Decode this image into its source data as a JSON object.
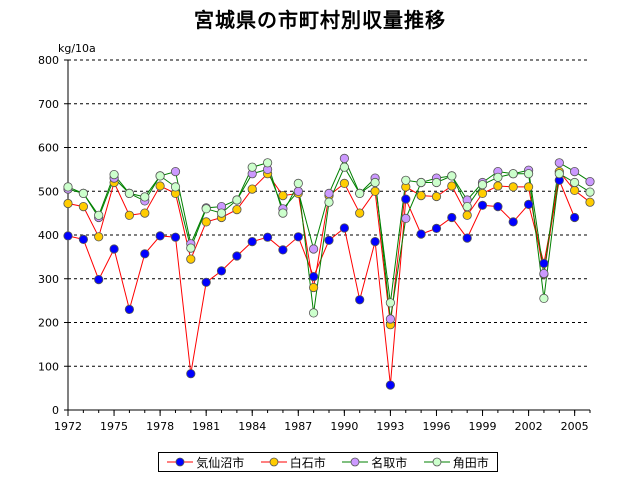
{
  "chart_data": {
    "type": "line",
    "title": "宮城県の市町村別収量推移",
    "unit_label": "kg/10a",
    "xlabel": "",
    "ylabel": "",
    "ylim": [
      0,
      800
    ],
    "y_ticks": [
      0,
      100,
      200,
      300,
      400,
      500,
      600,
      700,
      800
    ],
    "x_range": [
      1972,
      2006
    ],
    "x_ticks": [
      1972,
      1975,
      1978,
      1981,
      1984,
      1987,
      1990,
      1993,
      1996,
      1999,
      2002,
      2005
    ],
    "grid": true,
    "legend_position": "bottom",
    "x": [
      1972,
      1973,
      1974,
      1975,
      1976,
      1977,
      1978,
      1979,
      1980,
      1981,
      1982,
      1983,
      1984,
      1985,
      1986,
      1987,
      1988,
      1989,
      1990,
      1991,
      1992,
      1993,
      1994,
      1995,
      1996,
      1997,
      1998,
      1999,
      2000,
      2001,
      2002,
      2003,
      2004,
      2005,
      2006
    ],
    "series": [
      {
        "name": "気仙沼市",
        "line_color": "#ff0000",
        "marker_color": "#0000ff",
        "values": [
          398,
          390,
          298,
          368,
          230,
          357,
          398,
          395,
          83,
          292,
          318,
          352,
          385,
          395,
          366,
          396,
          305,
          388,
          416,
          252,
          385,
          57,
          482,
          402,
          415,
          440,
          393,
          468,
          465,
          430,
          470,
          335,
          525,
          440,
          null
        ]
      },
      {
        "name": "白石市",
        "line_color": "#ff0000",
        "marker_color": "#ffcc00",
        "values": [
          472,
          465,
          396,
          520,
          445,
          450,
          512,
          495,
          345,
          430,
          440,
          458,
          505,
          540,
          490,
          495,
          280,
          490,
          518,
          450,
          500,
          195,
          510,
          490,
          488,
          512,
          445,
          495,
          512,
          510,
          510,
          310,
          545,
          502,
          475
        ]
      },
      {
        "name": "名取市",
        "line_color": "#008000",
        "marker_color": "#cc99ff",
        "values": [
          505,
          495,
          440,
          530,
          495,
          478,
          535,
          545,
          380,
          462,
          465,
          480,
          540,
          550,
          460,
          500,
          368,
          495,
          575,
          495,
          530,
          208,
          438,
          520,
          530,
          535,
          480,
          520,
          545,
          540,
          548,
          312,
          565,
          545,
          522
        ]
      },
      {
        "name": "角田市",
        "line_color": "#008000",
        "marker_color": "#ccffcc",
        "values": [
          510,
          495,
          445,
          538,
          495,
          487,
          535,
          510,
          370,
          460,
          450,
          480,
          555,
          565,
          450,
          518,
          222,
          475,
          555,
          495,
          520,
          245,
          525,
          520,
          520,
          535,
          465,
          515,
          532,
          540,
          540,
          255,
          540,
          520,
          498
        ]
      }
    ]
  }
}
